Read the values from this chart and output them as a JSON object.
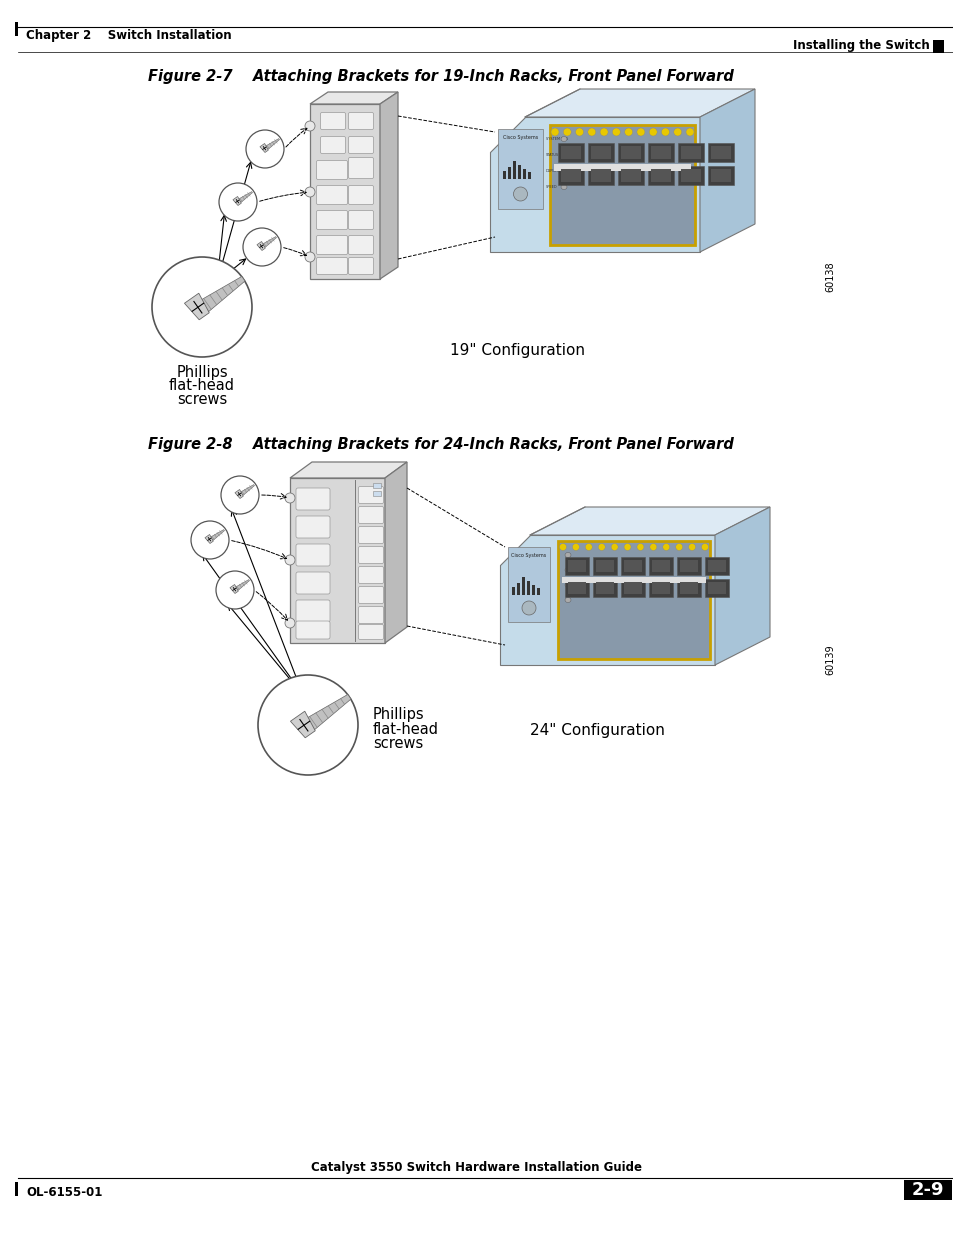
{
  "page_background": "#ffffff",
  "header_left": "Chapter 2    Switch Installation",
  "header_right": "Installing the Switch",
  "footer_left": "OL-6155-01",
  "footer_center": "Catalyst 3550 Switch Hardware Installation Guide",
  "footer_page": "2-9",
  "figure1_title": "Figure 2-7    Attaching Brackets for 19-Inch Racks, Front Panel Forward",
  "figure1_config_label": "19\" Configuration",
  "figure1_screw_label_line1": "Phillips",
  "figure1_screw_label_line2": "flat-head",
  "figure1_screw_label_line3": "screws",
  "figure1_id": "60138",
  "figure2_title": "Figure 2-8    Attaching Brackets for 24-Inch Racks, Front Panel Forward",
  "figure2_config_label": "24\" Configuration",
  "figure2_screw_label_line1": "Phillips",
  "figure2_screw_label_line2": "flat-head",
  "figure2_screw_label_line3": "screws",
  "figure2_id": "60139",
  "header_line_color": "#000000",
  "footer_line_color": "#000000",
  "text_color": "#000000",
  "fig_title_fontsize": 10.5,
  "header_fontsize": 8.5,
  "footer_fontsize": 8.5,
  "label_fontsize": 10,
  "screw_label_fontsize": 10.5,
  "config_label_fontsize": 11,
  "page_number_fontsize": 13
}
